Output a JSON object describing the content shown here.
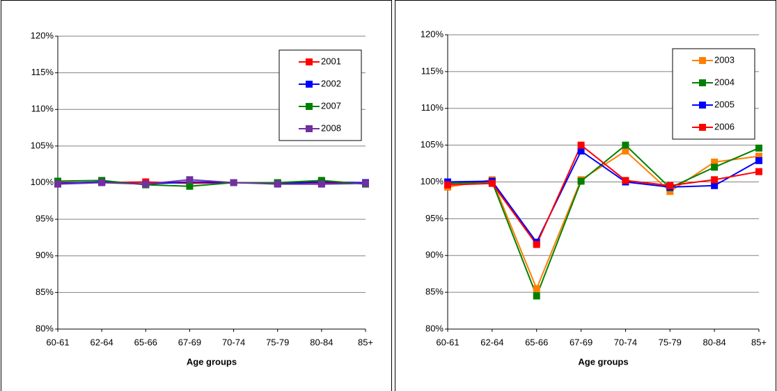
{
  "chart_data": [
    {
      "type": "line",
      "x_label": "Age groups",
      "categories": [
        "60-61",
        "62-64",
        "65-66",
        "67-69",
        "70-74",
        "75-79",
        "80-84",
        "85+"
      ],
      "ylim": [
        80,
        120
      ],
      "yticks": [
        {
          "value": 80,
          "label": "80%"
        },
        {
          "value": 85,
          "label": "85%"
        },
        {
          "value": 90,
          "label": "90%"
        },
        {
          "value": 95,
          "label": "95%"
        },
        {
          "value": 100,
          "label": "100%"
        },
        {
          "value": 105,
          "label": "105%"
        },
        {
          "value": 110,
          "label": "110%"
        },
        {
          "value": 115,
          "label": "115%"
        },
        {
          "value": 120,
          "label": "120%"
        }
      ],
      "grid": true,
      "legend": "top-right",
      "series": [
        {
          "name": "2001",
          "color": "#ff0000",
          "values": [
            100,
            100,
            100.1,
            99.9,
            100,
            99.9,
            100,
            100
          ]
        },
        {
          "name": "2002",
          "color": "#0000ff",
          "values": [
            99.9,
            100.1,
            99.8,
            100.1,
            100,
            99.9,
            100.1,
            100
          ]
        },
        {
          "name": "2007",
          "color": "#008000",
          "values": [
            100.2,
            100.3,
            99.7,
            99.5,
            100,
            100,
            100.3,
            99.8
          ]
        },
        {
          "name": "2008",
          "color": "#7030a0",
          "values": [
            99.8,
            100,
            99.8,
            100.4,
            100,
            99.8,
            99.8,
            99.9
          ]
        }
      ]
    },
    {
      "type": "line",
      "x_label": "Age groups",
      "categories": [
        "60-61",
        "62-64",
        "65-66",
        "67-69",
        "70-74",
        "75-79",
        "80-84",
        "85+"
      ],
      "ylim": [
        80,
        120
      ],
      "yticks": [
        {
          "value": 80,
          "label": "80%"
        },
        {
          "value": 85,
          "label": "85%"
        },
        {
          "value": 90,
          "label": "90%"
        },
        {
          "value": 95,
          "label": "95%"
        },
        {
          "value": 100,
          "label": "100%"
        },
        {
          "value": 105,
          "label": "105%"
        },
        {
          "value": 110,
          "label": "110%"
        },
        {
          "value": 115,
          "label": "115%"
        },
        {
          "value": 120,
          "label": "120%"
        }
      ],
      "grid": true,
      "legend": "top-right",
      "series": [
        {
          "name": "2003",
          "color": "#ff7f00",
          "values": [
            99.3,
            100.3,
            85.5,
            100.3,
            104.2,
            98.7,
            102.7,
            103.5
          ]
        },
        {
          "name": "2004",
          "color": "#008000",
          "values": [
            99.8,
            100,
            84.5,
            100.1,
            105,
            99.2,
            102,
            104.6
          ]
        },
        {
          "name": "2005",
          "color": "#0000ff",
          "values": [
            100,
            100.1,
            91.8,
            104.2,
            100,
            99.3,
            99.5,
            102.9
          ]
        },
        {
          "name": "2006",
          "color": "#ff0000",
          "values": [
            99.6,
            99.8,
            91.5,
            105,
            100.2,
            99.5,
            100.3,
            101.4
          ]
        }
      ]
    }
  ]
}
